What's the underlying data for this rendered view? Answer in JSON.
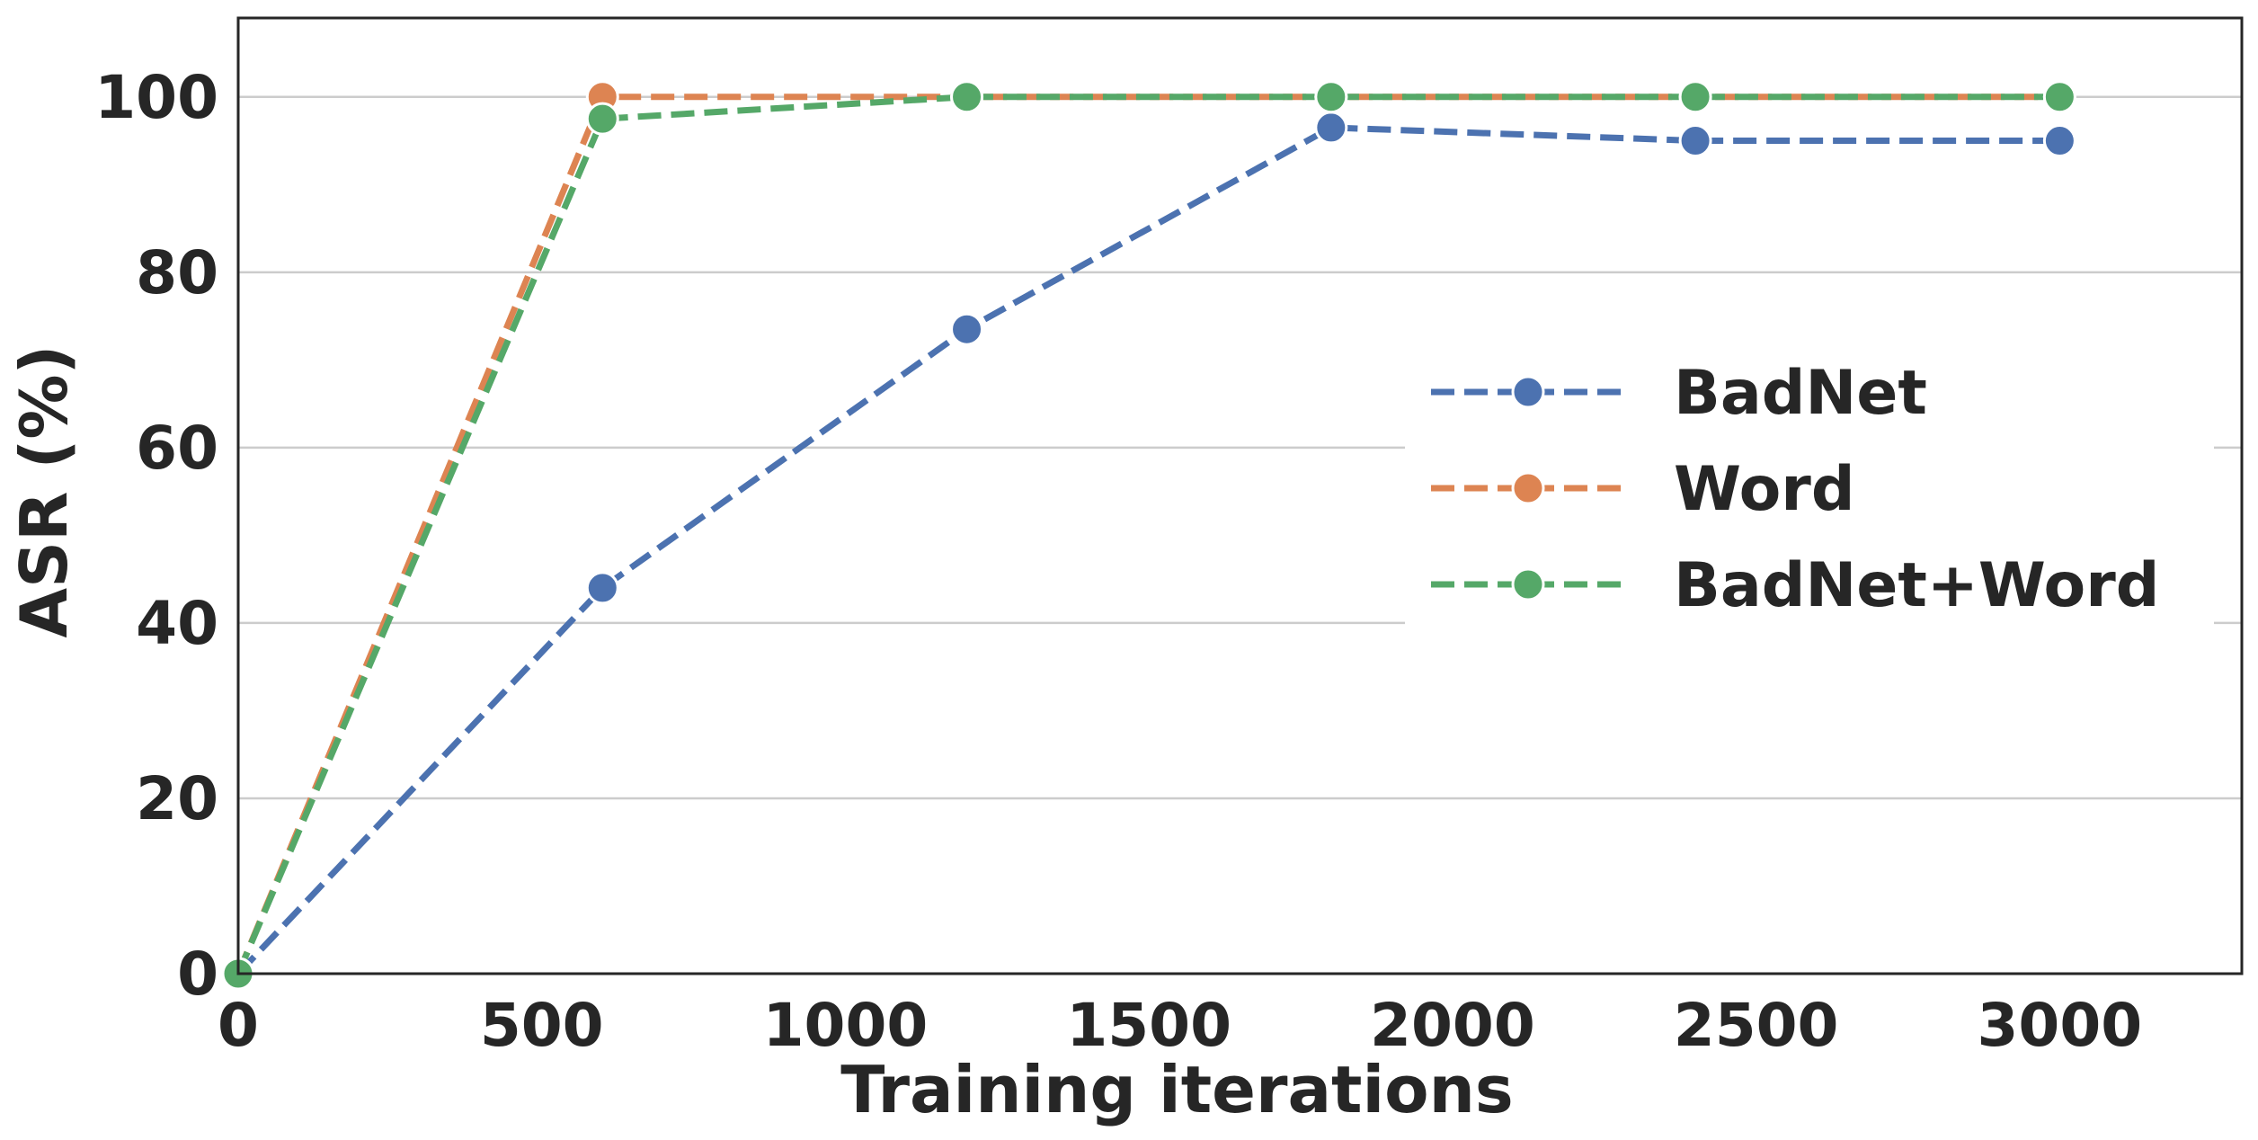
{
  "chart_data": {
    "type": "line",
    "title": "",
    "xlabel": "Training iterations",
    "ylabel": "ASR (%)",
    "xlim": [
      0,
      3300
    ],
    "ylim": [
      0,
      109
    ],
    "xticks": [
      0,
      500,
      1000,
      1500,
      2000,
      2500,
      3000
    ],
    "yticks": [
      0,
      20,
      40,
      60,
      80,
      100
    ],
    "xtick_labels": [
      "0",
      "500",
      "1000",
      "1500",
      "2000",
      "2500",
      "3000"
    ],
    "ytick_labels": [
      "0",
      "20",
      "40",
      "60",
      "80",
      "100"
    ],
    "grid": "horizontal",
    "legend_position": "center-right",
    "x": [
      0,
      600,
      1200,
      1800,
      2400,
      3000
    ],
    "series": [
      {
        "name": "BadNet",
        "color": "#4c72b0",
        "values": [
          0,
          44,
          73.5,
          96.5,
          95,
          95
        ]
      },
      {
        "name": "Word",
        "color": "#dd8452",
        "values": [
          0,
          100,
          100,
          100,
          100,
          100
        ]
      },
      {
        "name": "BadNet+Word",
        "color": "#55a868",
        "values": [
          0,
          97.5,
          100,
          100,
          100,
          100
        ]
      }
    ]
  }
}
